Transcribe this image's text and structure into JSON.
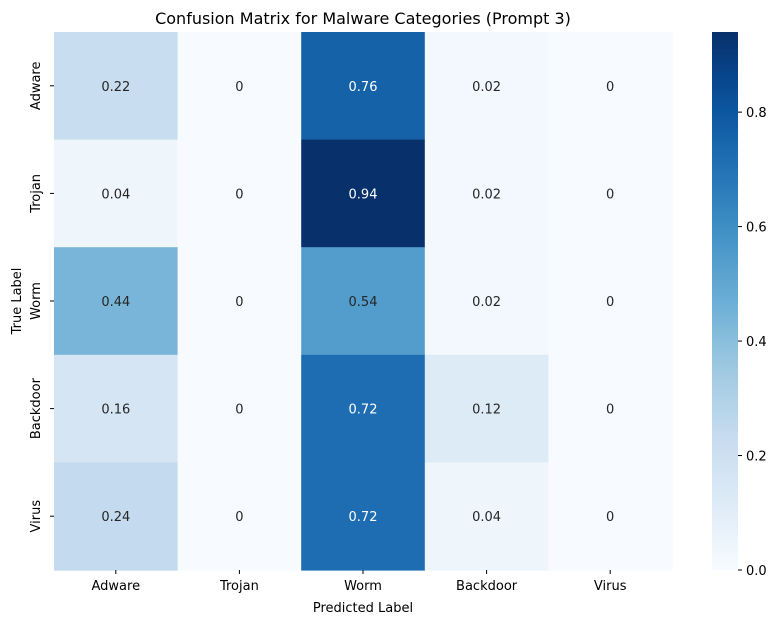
{
  "chart_data": {
    "type": "heatmap",
    "title": "Confusion Matrix for Malware Categories (Prompt 3)",
    "xlabel": "Predicted Label",
    "ylabel": "True Label",
    "x_categories": [
      "Adware",
      "Trojan",
      "Worm",
      "Backdoor",
      "Virus"
    ],
    "y_categories": [
      "Adware",
      "Trojan",
      "Worm",
      "Backdoor",
      "Virus"
    ],
    "values": [
      [
        0.22,
        0,
        0.76,
        0.02,
        0
      ],
      [
        0.04,
        0,
        0.94,
        0.02,
        0
      ],
      [
        0.44,
        0,
        0.54,
        0.02,
        0
      ],
      [
        0.16,
        0,
        0.72,
        0.12,
        0
      ],
      [
        0.24,
        0,
        0.72,
        0.04,
        0
      ]
    ],
    "value_labels": [
      [
        "0.22",
        "0",
        "0.76",
        "0.02",
        "0"
      ],
      [
        "0.04",
        "0",
        "0.94",
        "0.02",
        "0"
      ],
      [
        "0.44",
        "0",
        "0.54",
        "0.02",
        "0"
      ],
      [
        "0.16",
        "0",
        "0.72",
        "0.12",
        "0"
      ],
      [
        "0.24",
        "0",
        "0.72",
        "0.04",
        "0"
      ]
    ],
    "colormap": "Blues",
    "vmin": 0,
    "vmax": 0.94,
    "colorbar_ticks": [
      "0.0",
      "0.2",
      "0.4",
      "0.6",
      "0.8"
    ],
    "colorbar_tick_values": [
      0,
      0.2,
      0.4,
      0.6,
      0.8
    ],
    "grid": false,
    "colorbar_position": "right"
  }
}
